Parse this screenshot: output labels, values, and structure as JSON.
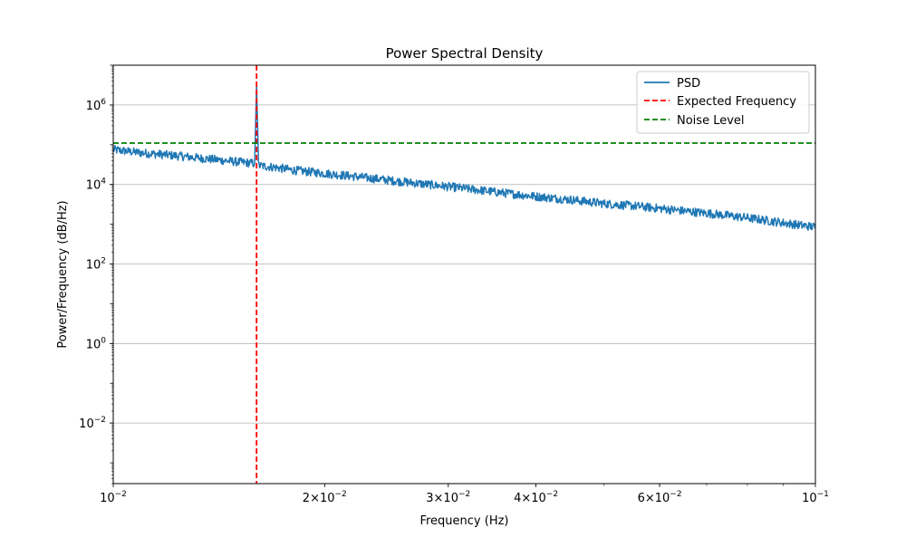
{
  "chart_data": {
    "type": "line",
    "title": "Power Spectral Density",
    "xlabel": "Frequency (Hz)",
    "ylabel": "Power/Frequency (dB/Hz)",
    "xscale": "log",
    "yscale": "log",
    "xlim": [
      0.01,
      0.1
    ],
    "ylim": [
      0.0003,
      10000000
    ],
    "grid": "y-major",
    "legend_position": "top-right",
    "x_ticks": [
      {
        "value": 0.01,
        "base": "10",
        "exp": "−2"
      },
      {
        "value": 0.02,
        "mant": "2",
        "base": "10",
        "exp": "−2"
      },
      {
        "value": 0.03,
        "mant": "3",
        "base": "10",
        "exp": "−2"
      },
      {
        "value": 0.04,
        "mant": "4",
        "base": "10",
        "exp": "−2"
      },
      {
        "value": 0.06,
        "mant": "6",
        "base": "10",
        "exp": "−2"
      },
      {
        "value": 0.1,
        "base": "10",
        "exp": "−1"
      }
    ],
    "y_ticks": [
      {
        "value": 1000000,
        "base": "10",
        "exp": "6"
      },
      {
        "value": 10000,
        "base": "10",
        "exp": "4"
      },
      {
        "value": 100,
        "base": "10",
        "exp": "2"
      },
      {
        "value": 1,
        "base": "10",
        "exp": "0"
      },
      {
        "value": 0.01,
        "base": "10",
        "exp": "−2"
      }
    ],
    "series": [
      {
        "name": "PSD",
        "color": "#1f77b4",
        "style": "solid",
        "x": [
          0.01,
          0.011,
          0.012,
          0.013,
          0.014,
          0.015,
          0.0159,
          0.016,
          0.0161,
          0.017,
          0.018,
          0.02,
          0.022,
          0.025,
          0.028,
          0.03,
          0.033,
          0.036,
          0.04,
          0.045,
          0.05,
          0.055,
          0.06,
          0.066,
          0.072,
          0.08,
          0.088,
          0.095,
          0.1
        ],
        "y": [
          75000,
          62000,
          55000,
          48000,
          42000,
          37000,
          34000,
          3000000,
          30000,
          27000,
          23000,
          19000,
          16000,
          12500,
          10000,
          8800,
          7300,
          6100,
          5000,
          4100,
          3300,
          2900,
          2500,
          2100,
          1800,
          1450,
          1150,
          950,
          850
        ],
        "noise_amplitude": 0.22
      },
      {
        "name": "Expected Frequency",
        "color": "#ff0000",
        "style": "dashed",
        "orientation": "vertical",
        "x_value": 0.016
      },
      {
        "name": "Noise Level",
        "color": "#008000",
        "style": "dashed",
        "orientation": "horizontal",
        "y_value": 110000
      }
    ]
  }
}
